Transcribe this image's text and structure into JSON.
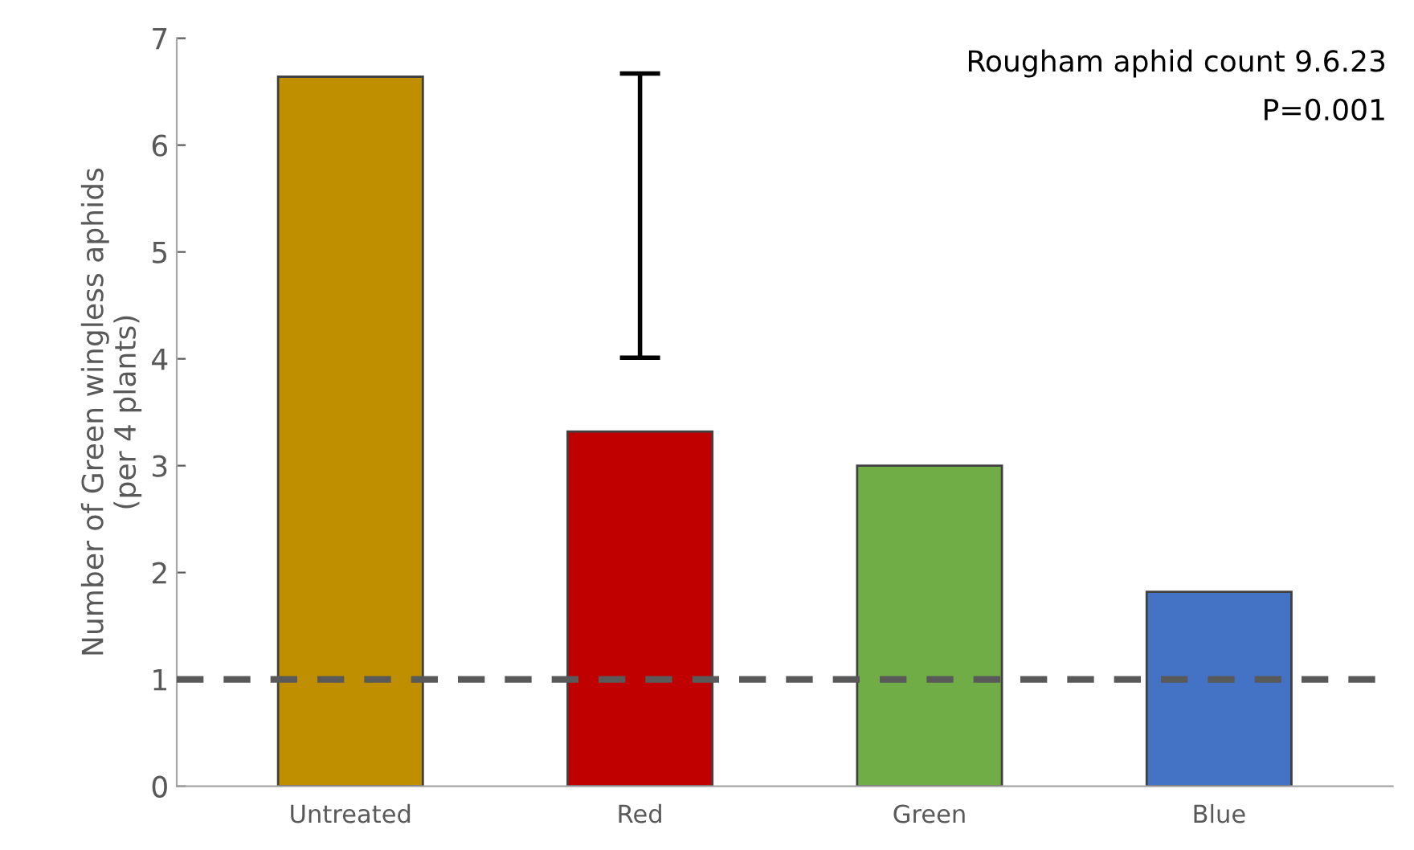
{
  "chart_data": {
    "type": "bar",
    "ylabel": "Number of Green wingless aphids\n(per 4 plants)",
    "annotations": [
      "Rougham aphid count 9.6.23",
      "P=0.001"
    ],
    "categories": [
      "Untreated",
      "Red",
      "Green",
      "Blue"
    ],
    "values": [
      6.64,
      3.32,
      3.0,
      1.82
    ],
    "colors": [
      "#bf8f00",
      "#c00000",
      "#70ad47",
      "#4472c4"
    ],
    "errors": [
      null,
      [
        4.01,
        6.67
      ],
      null,
      null
    ],
    "ref_lines": [
      {
        "axis": "y",
        "value": 1.0,
        "color": "#595959",
        "line_style": "dashed"
      }
    ],
    "ylim": [
      0,
      7
    ],
    "yticks": [
      0,
      1,
      2,
      3,
      4,
      5,
      6,
      7
    ],
    "grid": false,
    "legend": false
  }
}
